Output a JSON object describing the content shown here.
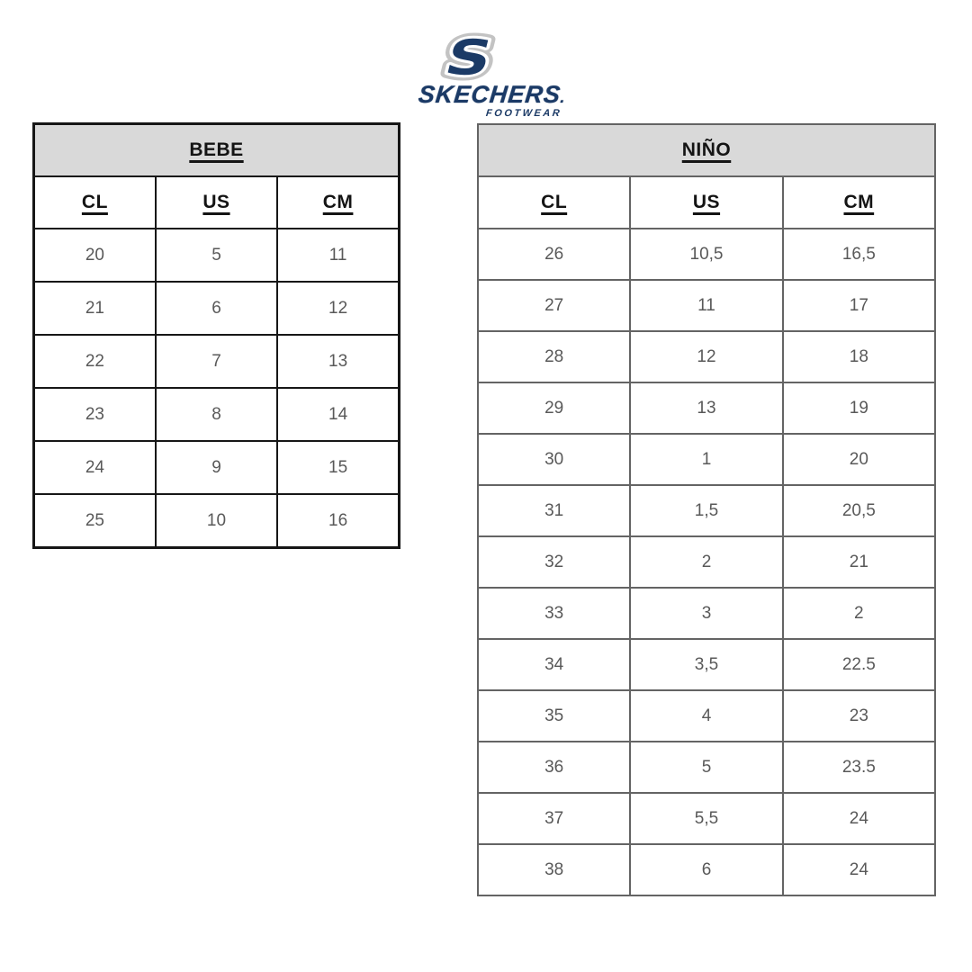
{
  "logo": {
    "monogram": "S",
    "brand": "SKECHERS",
    "trademark_dot": ".",
    "subtext": "FOOTWEAR",
    "colors": {
      "navy": "#1b3a66",
      "silver": "#c3c3c3"
    }
  },
  "styles": {
    "header_bg": "#d9d9d9",
    "data_text": "#595959"
  },
  "tables": [
    {
      "title": "BEBE",
      "columns": [
        "CL",
        "US",
        "CM"
      ],
      "rows": [
        [
          "20",
          "5",
          "11"
        ],
        [
          "21",
          "6",
          "12"
        ],
        [
          "22",
          "7",
          "13"
        ],
        [
          "23",
          "8",
          "14"
        ],
        [
          "24",
          "9",
          "15"
        ],
        [
          "25",
          "10",
          "16"
        ]
      ]
    },
    {
      "title": "NIÑO",
      "columns": [
        "CL",
        "US",
        "CM"
      ],
      "rows": [
        [
          "26",
          "10,5",
          "16,5"
        ],
        [
          "27",
          "11",
          "17"
        ],
        [
          "28",
          "12",
          "18"
        ],
        [
          "29",
          "13",
          "19"
        ],
        [
          "30",
          "1",
          "20"
        ],
        [
          "31",
          "1,5",
          "20,5"
        ],
        [
          "32",
          "2",
          "21"
        ],
        [
          "33",
          "3",
          "2"
        ],
        [
          "34",
          "3,5",
          "22.5"
        ],
        [
          "35",
          "4",
          "23"
        ],
        [
          "36",
          "5",
          "23.5"
        ],
        [
          "37",
          "5,5",
          "24"
        ],
        [
          "38",
          "6",
          "24"
        ]
      ]
    }
  ]
}
